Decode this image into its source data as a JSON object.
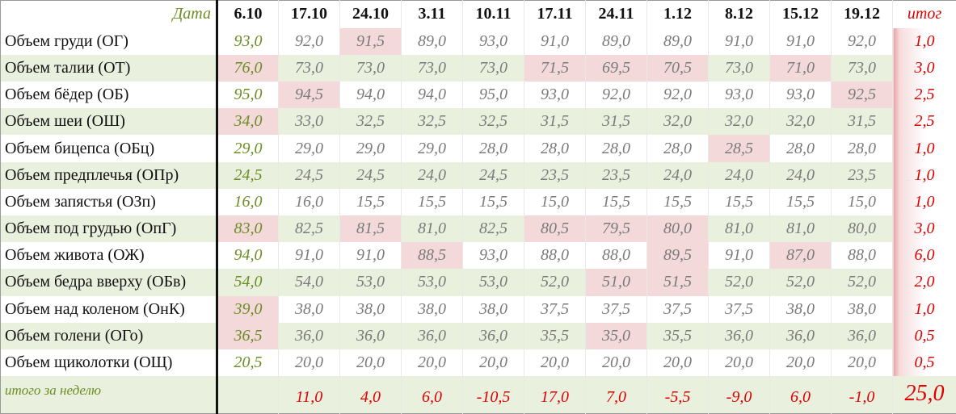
{
  "header": {
    "label": "Дата",
    "dates": [
      "6.10",
      "17.10",
      "24.10",
      "3.11",
      "10.11",
      "17.11",
      "24.11",
      "1.12",
      "8.12",
      "15.12",
      "19.12"
    ],
    "total": "итог"
  },
  "rows": [
    {
      "label": "Объем груди (ОГ)",
      "values": [
        "93,0",
        "92,0",
        "91,5",
        "89,0",
        "93,0",
        "91,0",
        "89,0",
        "89,0",
        "91,0",
        "91,0",
        "92,0"
      ],
      "total": "1,0"
    },
    {
      "label": "Объем талии (ОТ)",
      "values": [
        "76,0",
        "73,0",
        "73,0",
        "73,0",
        "73,0",
        "71,5",
        "69,5",
        "70,5",
        "73,0",
        "71,0",
        "73,0"
      ],
      "total": "3,0"
    },
    {
      "label": "Объем бёдер (ОБ)",
      "values": [
        "95,0",
        "94,5",
        "94,0",
        "94,0",
        "95,0",
        "93,0",
        "92,0",
        "92,0",
        "93,0",
        "93,0",
        "92,5"
      ],
      "total": "2,5"
    },
    {
      "label": "Объем шеи (ОШ)",
      "values": [
        "34,0",
        "33,0",
        "32,5",
        "32,5",
        "32,5",
        "31,5",
        "31,5",
        "32,0",
        "32,0",
        "32,0",
        "31,5"
      ],
      "total": "2,5"
    },
    {
      "label": "Объем бицепса (ОБц)",
      "values": [
        "29,0",
        "29,0",
        "29,0",
        "29,0",
        "28,0",
        "28,0",
        "28,0",
        "28,0",
        "28,5",
        "28,0",
        "28,0"
      ],
      "total": "1,0"
    },
    {
      "label": "Объем предплечья (ОПр)",
      "values": [
        "24,5",
        "24,5",
        "24,5",
        "24,0",
        "24,5",
        "23,5",
        "23,5",
        "24,0",
        "24,0",
        "24,0",
        "23,5"
      ],
      "total": "1,0"
    },
    {
      "label": "Объем запястья (ОЗп)",
      "values": [
        "16,0",
        "16,0",
        "15,5",
        "15,5",
        "15,5",
        "15,0",
        "15,5",
        "15,5",
        "15,5",
        "15,5",
        "15,0"
      ],
      "total": "1,0"
    },
    {
      "label": "Объем под грудью (ОпГ)",
      "values": [
        "83,0",
        "82,5",
        "81,5",
        "81,0",
        "82,5",
        "80,5",
        "79,5",
        "80,0",
        "81,0",
        "81,0",
        "80,0"
      ],
      "total": "3,0"
    },
    {
      "label": "Объем живота (ОЖ)",
      "values": [
        "94,0",
        "91,0",
        "91,0",
        "88,5",
        "93,0",
        "88,0",
        "88,0",
        "89,5",
        "91,0",
        "87,0",
        "88,0"
      ],
      "total": "6,0"
    },
    {
      "label": "Объем бедра вверху (ОБв)",
      "values": [
        "54,0",
        "54,0",
        "53,0",
        "53,0",
        "53,0",
        "52,0",
        "51,0",
        "51,5",
        "52,0",
        "52,0",
        "52,0"
      ],
      "total": "2,0"
    },
    {
      "label": "Объем над коленом (ОнК)",
      "values": [
        "39,0",
        "38,0",
        "38,0",
        "38,0",
        "38,0",
        "37,5",
        "37,5",
        "37,5",
        "37,5",
        "38,0",
        "38,0"
      ],
      "total": "1,0"
    },
    {
      "label": "Объем голени (ОГо)",
      "values": [
        "36,5",
        "36,0",
        "36,0",
        "36,0",
        "36,0",
        "35,5",
        "35,0",
        "35,5",
        "36,0",
        "36,0",
        "36,0"
      ],
      "total": "0,5"
    },
    {
      "label": "Объем щиколотки (ОЩ)",
      "values": [
        "20,5",
        "20,0",
        "20,0",
        "20,0",
        "20,0",
        "20,0",
        "20,0",
        "20,0",
        "20,0",
        "20,0",
        "20,0"
      ],
      "total": "0,5"
    }
  ],
  "footer": {
    "label": "итого за неделю",
    "values": [
      "11,0",
      "4,0",
      "6,0",
      "-10,5",
      "17,0",
      "7,0",
      "-5,5",
      "-9,0",
      "6,0",
      "-1,0"
    ],
    "total": "25,0"
  }
}
